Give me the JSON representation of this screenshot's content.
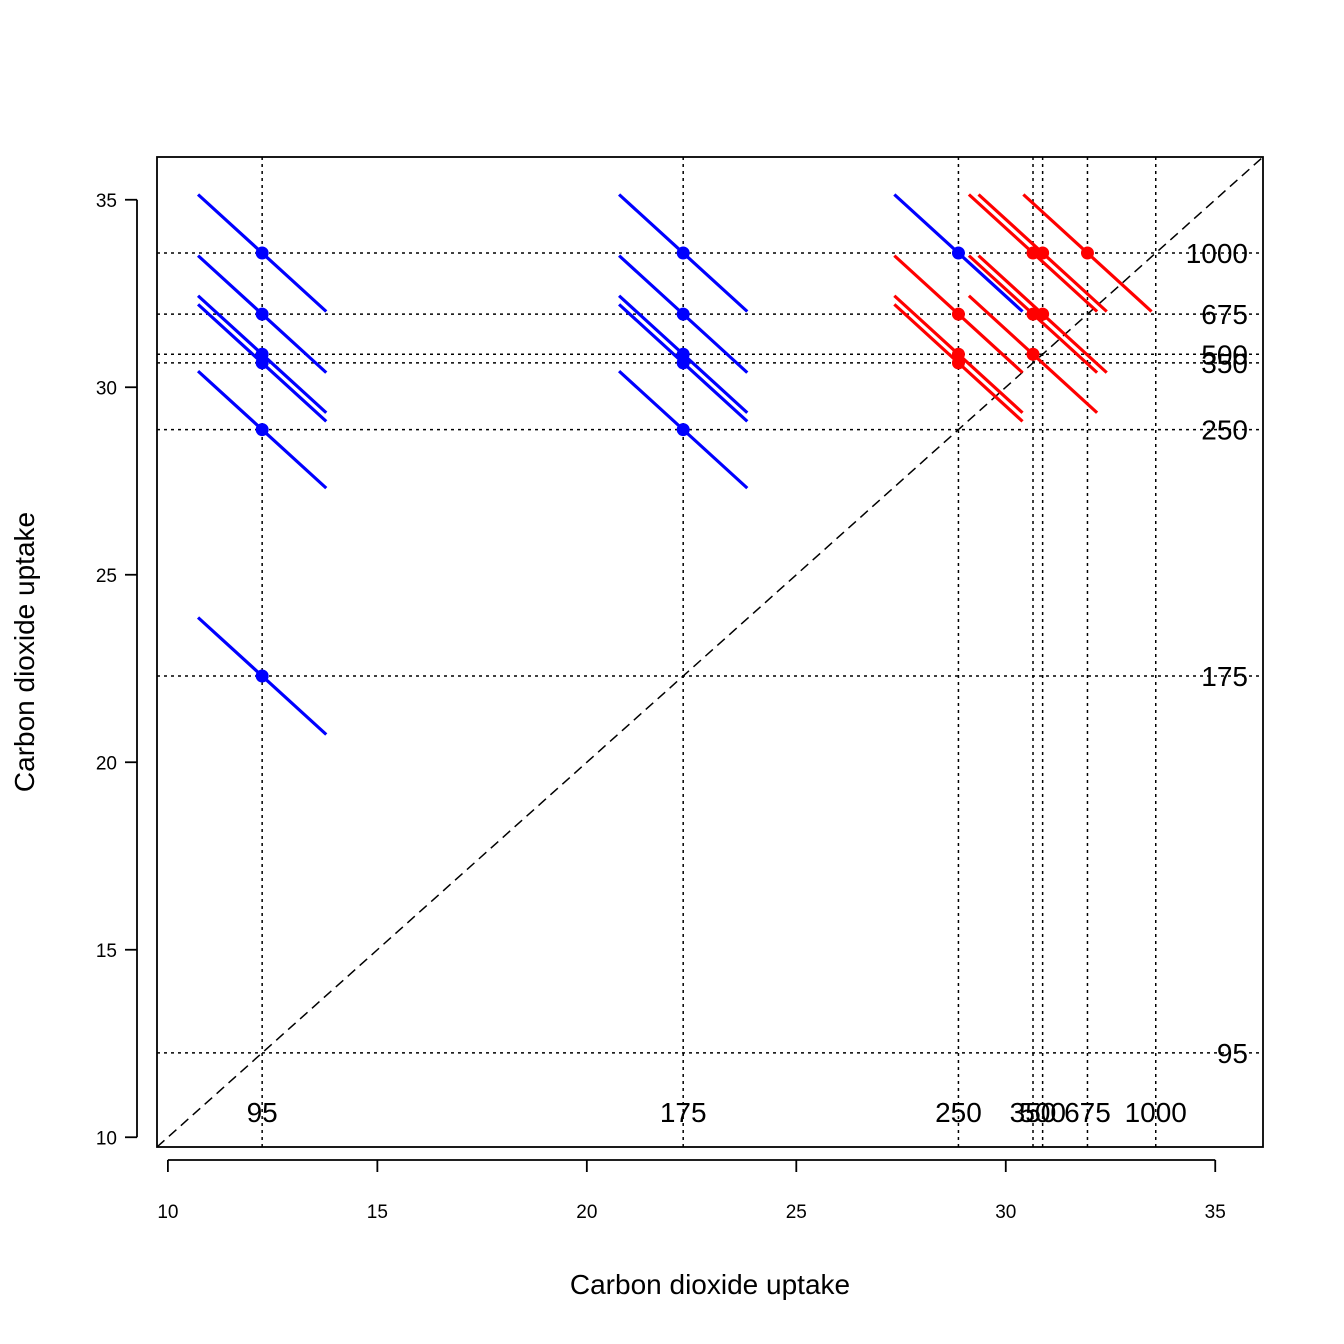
{
  "chart_data": {
    "type": "scatter",
    "xlabel": "Carbon dioxide uptake",
    "ylabel": "Carbon dioxide uptake",
    "xlim": [
      9.74,
      36.14
    ],
    "ylim": [
      9.74,
      36.14
    ],
    "x_ticks": [
      10,
      15,
      20,
      25,
      30,
      35
    ],
    "y_ticks": [
      10,
      15,
      20,
      25,
      30,
      35
    ],
    "diagonal_reference": true,
    "colors": {
      "blue": "#0000ff",
      "red": "#ff0000",
      "grid": "#000000"
    },
    "reference_levels": [
      {
        "label": "95",
        "x": 12.25,
        "y": 12.25
      },
      {
        "label": "175",
        "x": 22.3,
        "y": 22.3
      },
      {
        "label": "250",
        "x": 28.87,
        "y": 28.87
      },
      {
        "label": "350",
        "x": 30.65,
        "y": 30.65
      },
      {
        "label": "500",
        "x": 30.88,
        "y": 30.88
      },
      {
        "label": "675",
        "x": 31.95,
        "y": 31.95
      },
      {
        "label": "1000",
        "x": 33.58,
        "y": 33.58
      }
    ],
    "segment_half_width_x": 1.53,
    "segment_half_height_y": 1.56,
    "series": [
      {
        "color": "#0000ff",
        "points": [
          {
            "x": 12.25,
            "y": 33.58
          },
          {
            "x": 12.25,
            "y": 31.95
          },
          {
            "x": 12.25,
            "y": 30.88
          },
          {
            "x": 12.25,
            "y": 30.65
          },
          {
            "x": 12.25,
            "y": 28.87
          },
          {
            "x": 12.25,
            "y": 22.3
          },
          {
            "x": 22.3,
            "y": 33.58
          },
          {
            "x": 22.3,
            "y": 31.95
          },
          {
            "x": 22.3,
            "y": 30.88
          },
          {
            "x": 22.3,
            "y": 30.65
          },
          {
            "x": 22.3,
            "y": 28.87
          },
          {
            "x": 28.87,
            "y": 33.58
          }
        ]
      },
      {
        "color": "#ff0000",
        "points": [
          {
            "x": 28.87,
            "y": 31.95
          },
          {
            "x": 28.87,
            "y": 30.88
          },
          {
            "x": 28.87,
            "y": 30.65
          },
          {
            "x": 30.65,
            "y": 33.58
          },
          {
            "x": 30.65,
            "y": 31.95
          },
          {
            "x": 30.65,
            "y": 30.88
          },
          {
            "x": 30.88,
            "y": 33.58
          },
          {
            "x": 30.88,
            "y": 31.95
          },
          {
            "x": 31.95,
            "y": 33.58
          }
        ]
      }
    ]
  }
}
